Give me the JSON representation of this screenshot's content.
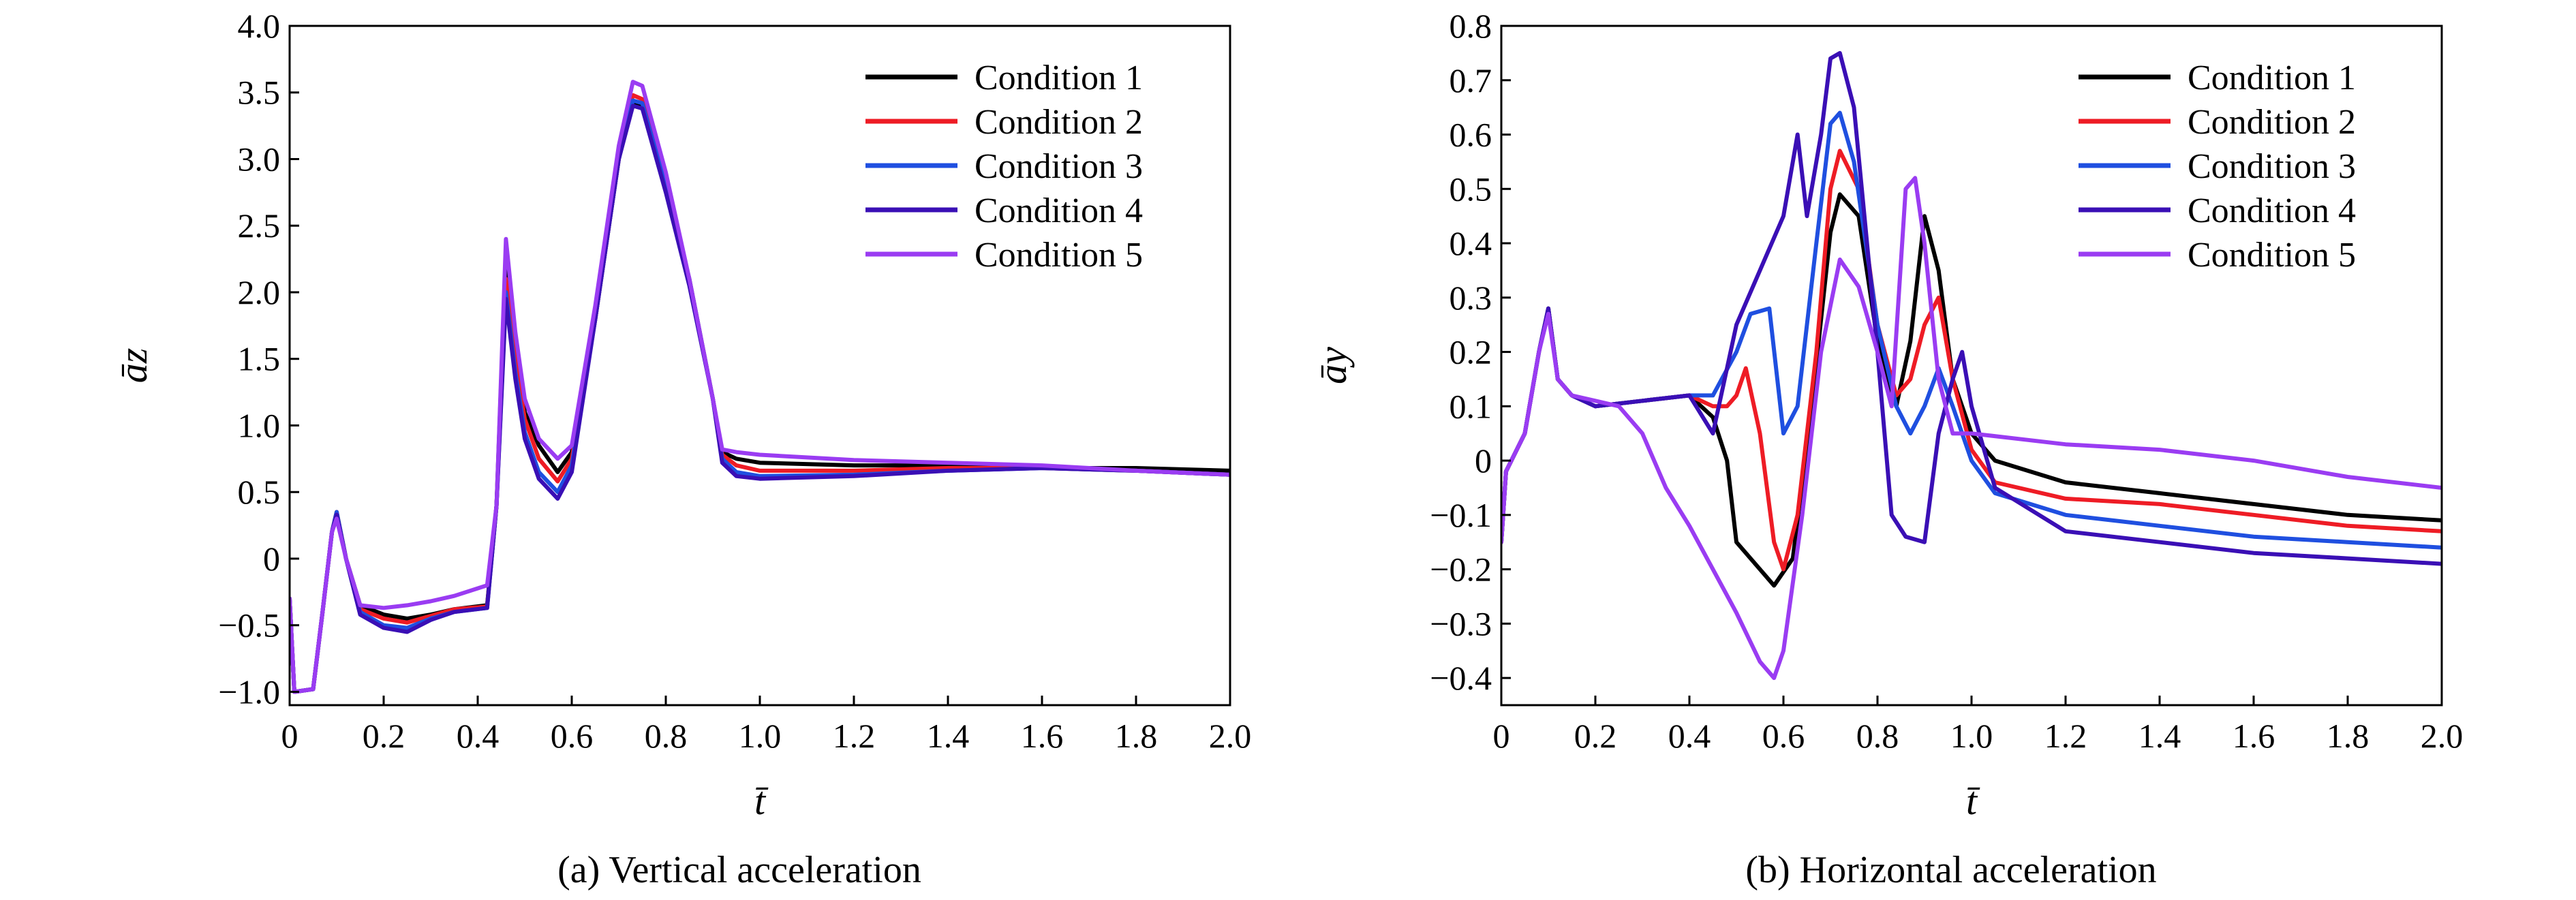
{
  "chart_data": [
    {
      "type": "line",
      "caption": "(a) Vertical acceleration",
      "xlabel": "t̄",
      "ylabel": "āz",
      "xlim": [
        0,
        2.0
      ],
      "ylim": [
        -1.1,
        4.0
      ],
      "xticks": [
        "0",
        "0.2",
        "0.4",
        "0.6",
        "0.8",
        "1.0",
        "1.2",
        "1.4",
        "1.6",
        "1.8",
        "2.0"
      ],
      "xtick_values": [
        0,
        0.2,
        0.4,
        0.6,
        0.8,
        1.0,
        1.2,
        1.4,
        1.6,
        1.8,
        2.0
      ],
      "yticks": [
        "−1.0",
        "−0.5",
        "0",
        "0.5",
        "1.0",
        "1.5",
        "2.0",
        "2.5",
        "3.0",
        "3.5",
        "4.0"
      ],
      "ytick_values": [
        -1.0,
        -0.5,
        0,
        0.5,
        1.0,
        1.5,
        2.0,
        2.5,
        3.0,
        3.5,
        4.0
      ],
      "legend_position": "top-right",
      "series": [
        {
          "name": "Condition 1",
          "color": "#000000",
          "x": [
            0,
            0.01,
            0.05,
            0.07,
            0.09,
            0.1,
            0.12,
            0.15,
            0.2,
            0.25,
            0.3,
            0.35,
            0.42,
            0.44,
            0.46,
            0.48,
            0.5,
            0.53,
            0.57,
            0.6,
            0.65,
            0.7,
            0.73,
            0.75,
            0.8,
            0.85,
            0.9,
            0.92,
            0.95,
            1.0,
            1.2,
            1.4,
            1.6,
            1.8,
            2.0
          ],
          "y": [
            -0.3,
            -1.0,
            -0.98,
            -0.4,
            0.2,
            0.35,
            0.0,
            -0.35,
            -0.42,
            -0.45,
            -0.42,
            -0.38,
            -0.35,
            0.4,
            2.3,
            1.6,
            1.1,
            0.85,
            0.65,
            0.8,
            1.8,
            3.0,
            3.42,
            3.4,
            2.8,
            2.1,
            1.2,
            0.8,
            0.75,
            0.72,
            0.7,
            0.7,
            0.68,
            0.68,
            0.66
          ]
        },
        {
          "name": "Condition 2",
          "color": "#ee1c25",
          "x": [
            0,
            0.01,
            0.05,
            0.07,
            0.09,
            0.1,
            0.12,
            0.15,
            0.2,
            0.25,
            0.3,
            0.35,
            0.42,
            0.44,
            0.46,
            0.48,
            0.5,
            0.53,
            0.57,
            0.6,
            0.65,
            0.7,
            0.73,
            0.75,
            0.8,
            0.85,
            0.9,
            0.92,
            0.95,
            1.0,
            1.2,
            1.4,
            1.6,
            1.8,
            2.0
          ],
          "y": [
            -0.3,
            -1.0,
            -0.98,
            -0.4,
            0.2,
            0.35,
            0.0,
            -0.38,
            -0.45,
            -0.48,
            -0.43,
            -0.38,
            -0.36,
            0.4,
            2.1,
            1.5,
            1.05,
            0.75,
            0.58,
            0.75,
            1.8,
            3.0,
            3.48,
            3.45,
            2.8,
            2.1,
            1.2,
            0.78,
            0.7,
            0.66,
            0.66,
            0.68,
            0.68,
            0.66,
            0.63
          ]
        },
        {
          "name": "Condition 3",
          "color": "#1f4fe0",
          "x": [
            0,
            0.01,
            0.05,
            0.07,
            0.09,
            0.1,
            0.12,
            0.15,
            0.2,
            0.25,
            0.3,
            0.35,
            0.42,
            0.44,
            0.46,
            0.48,
            0.5,
            0.53,
            0.57,
            0.6,
            0.65,
            0.7,
            0.73,
            0.75,
            0.8,
            0.85,
            0.9,
            0.92,
            0.95,
            1.0,
            1.2,
            1.4,
            1.6,
            1.8,
            2.0
          ],
          "y": [
            -0.3,
            -1.0,
            -0.98,
            -0.4,
            0.2,
            0.35,
            0.0,
            -0.4,
            -0.5,
            -0.52,
            -0.45,
            -0.4,
            -0.37,
            0.4,
            2.0,
            1.4,
            0.95,
            0.65,
            0.5,
            0.7,
            1.8,
            3.0,
            3.44,
            3.42,
            2.8,
            2.1,
            1.2,
            0.75,
            0.65,
            0.62,
            0.63,
            0.66,
            0.68,
            0.66,
            0.63
          ]
        },
        {
          "name": "Condition 4",
          "color": "#3a0fb5",
          "x": [
            0,
            0.01,
            0.05,
            0.07,
            0.09,
            0.1,
            0.12,
            0.15,
            0.2,
            0.25,
            0.3,
            0.35,
            0.42,
            0.44,
            0.46,
            0.48,
            0.5,
            0.53,
            0.57,
            0.6,
            0.65,
            0.7,
            0.73,
            0.75,
            0.8,
            0.85,
            0.9,
            0.92,
            0.95,
            1.0,
            1.2,
            1.4,
            1.6,
            1.8,
            2.0
          ],
          "y": [
            -0.3,
            -1.0,
            -0.98,
            -0.4,
            0.2,
            0.33,
            0.0,
            -0.42,
            -0.52,
            -0.55,
            -0.46,
            -0.4,
            -0.37,
            0.4,
            1.95,
            1.35,
            0.9,
            0.6,
            0.45,
            0.65,
            1.8,
            3.0,
            3.4,
            3.38,
            2.75,
            2.05,
            1.2,
            0.72,
            0.62,
            0.6,
            0.62,
            0.66,
            0.68,
            0.66,
            0.63
          ]
        },
        {
          "name": "Condition 5",
          "color": "#9a3cf2",
          "x": [
            0,
            0.01,
            0.05,
            0.07,
            0.09,
            0.1,
            0.12,
            0.15,
            0.2,
            0.25,
            0.3,
            0.35,
            0.42,
            0.44,
            0.46,
            0.48,
            0.5,
            0.53,
            0.57,
            0.6,
            0.65,
            0.7,
            0.73,
            0.75,
            0.8,
            0.85,
            0.9,
            0.92,
            0.95,
            1.0,
            1.2,
            1.4,
            1.6,
            1.8,
            2.0
          ],
          "y": [
            -0.3,
            -1.0,
            -0.98,
            -0.4,
            0.2,
            0.3,
            0.0,
            -0.35,
            -0.37,
            -0.35,
            -0.32,
            -0.28,
            -0.2,
            0.4,
            2.4,
            1.7,
            1.2,
            0.9,
            0.75,
            0.85,
            1.9,
            3.1,
            3.58,
            3.55,
            2.9,
            2.1,
            1.2,
            0.82,
            0.8,
            0.78,
            0.74,
            0.72,
            0.7,
            0.66,
            0.63
          ]
        }
      ]
    },
    {
      "type": "line",
      "caption": "(b) Horizontal acceleration",
      "xlabel": "t̄",
      "ylabel": "āy",
      "xlim": [
        0,
        2.0
      ],
      "ylim": [
        -0.45,
        0.8
      ],
      "xticks": [
        "0",
        "0.2",
        "0.4",
        "0.6",
        "0.8",
        "1.0",
        "1.2",
        "1.4",
        "1.6",
        "1.8",
        "2.0"
      ],
      "xtick_values": [
        0,
        0.2,
        0.4,
        0.6,
        0.8,
        1.0,
        1.2,
        1.4,
        1.6,
        1.8,
        2.0
      ],
      "yticks": [
        "−0.4",
        "−0.3",
        "−0.2",
        "−0.1",
        "0",
        "0.1",
        "0.2",
        "0.3",
        "0.4",
        "0.5",
        "0.6",
        "0.7",
        "0.8"
      ],
      "ytick_values": [
        -0.4,
        -0.3,
        -0.2,
        -0.1,
        0,
        0.1,
        0.2,
        0.3,
        0.4,
        0.5,
        0.6,
        0.7,
        0.8
      ],
      "legend_position": "top-right",
      "series": [
        {
          "name": "Condition 1",
          "color": "#000000",
          "x": [
            0,
            0.01,
            0.05,
            0.08,
            0.1,
            0.12,
            0.15,
            0.2,
            0.3,
            0.4,
            0.45,
            0.48,
            0.5,
            0.55,
            0.58,
            0.62,
            0.66,
            0.7,
            0.72,
            0.76,
            0.8,
            0.84,
            0.87,
            0.9,
            0.93,
            0.96,
            1.0,
            1.05,
            1.2,
            1.4,
            1.6,
            1.8,
            2.0
          ],
          "y": [
            -0.15,
            -0.02,
            0.05,
            0.2,
            0.28,
            0.15,
            0.12,
            0.1,
            0.11,
            0.12,
            0.08,
            0.0,
            -0.15,
            -0.2,
            -0.23,
            -0.18,
            0.1,
            0.42,
            0.49,
            0.45,
            0.22,
            0.1,
            0.22,
            0.45,
            0.35,
            0.15,
            0.05,
            0.0,
            -0.04,
            -0.06,
            -0.08,
            -0.1,
            -0.11
          ]
        },
        {
          "name": "Condition 2",
          "color": "#ee1c25",
          "x": [
            0,
            0.01,
            0.05,
            0.08,
            0.1,
            0.12,
            0.15,
            0.2,
            0.3,
            0.4,
            0.45,
            0.48,
            0.5,
            0.52,
            0.55,
            0.58,
            0.6,
            0.63,
            0.67,
            0.7,
            0.72,
            0.76,
            0.8,
            0.84,
            0.87,
            0.9,
            0.93,
            0.96,
            1.0,
            1.05,
            1.2,
            1.4,
            1.6,
            1.8,
            2.0
          ],
          "y": [
            -0.15,
            -0.02,
            0.05,
            0.2,
            0.28,
            0.15,
            0.12,
            0.1,
            0.11,
            0.12,
            0.1,
            0.1,
            0.12,
            0.17,
            0.05,
            -0.15,
            -0.2,
            -0.1,
            0.2,
            0.5,
            0.57,
            0.5,
            0.25,
            0.12,
            0.15,
            0.25,
            0.3,
            0.15,
            0.02,
            -0.04,
            -0.07,
            -0.08,
            -0.1,
            -0.12,
            -0.13
          ]
        },
        {
          "name": "Condition 3",
          "color": "#1f4fe0",
          "x": [
            0,
            0.01,
            0.05,
            0.08,
            0.1,
            0.12,
            0.15,
            0.2,
            0.3,
            0.4,
            0.45,
            0.5,
            0.53,
            0.57,
            0.6,
            0.63,
            0.67,
            0.7,
            0.72,
            0.75,
            0.8,
            0.84,
            0.87,
            0.9,
            0.93,
            0.96,
            1.0,
            1.05,
            1.2,
            1.4,
            1.6,
            1.8,
            2.0
          ],
          "y": [
            -0.15,
            -0.02,
            0.05,
            0.2,
            0.28,
            0.15,
            0.12,
            0.1,
            0.11,
            0.12,
            0.12,
            0.2,
            0.27,
            0.28,
            0.05,
            0.1,
            0.4,
            0.62,
            0.64,
            0.55,
            0.25,
            0.1,
            0.05,
            0.1,
            0.17,
            0.1,
            0.0,
            -0.06,
            -0.1,
            -0.12,
            -0.14,
            -0.15,
            -0.16
          ]
        },
        {
          "name": "Condition 4",
          "color": "#3a0fb5",
          "x": [
            0,
            0.01,
            0.05,
            0.08,
            0.1,
            0.12,
            0.15,
            0.2,
            0.3,
            0.4,
            0.45,
            0.5,
            0.55,
            0.6,
            0.63,
            0.65,
            0.68,
            0.7,
            0.72,
            0.75,
            0.8,
            0.83,
            0.86,
            0.9,
            0.93,
            0.96,
            0.98,
            1.0,
            1.05,
            1.2,
            1.4,
            1.6,
            1.8,
            2.0
          ],
          "y": [
            -0.15,
            -0.02,
            0.05,
            0.2,
            0.28,
            0.15,
            0.12,
            0.1,
            0.11,
            0.12,
            0.05,
            0.25,
            0.35,
            0.45,
            0.6,
            0.45,
            0.6,
            0.74,
            0.75,
            0.65,
            0.2,
            -0.1,
            -0.14,
            -0.15,
            0.05,
            0.15,
            0.2,
            0.1,
            -0.05,
            -0.13,
            -0.15,
            -0.17,
            -0.18,
            -0.19
          ]
        },
        {
          "name": "Condition 5",
          "color": "#9a3cf2",
          "x": [
            0,
            0.01,
            0.05,
            0.08,
            0.1,
            0.12,
            0.15,
            0.2,
            0.25,
            0.3,
            0.35,
            0.4,
            0.45,
            0.5,
            0.55,
            0.58,
            0.6,
            0.64,
            0.68,
            0.72,
            0.76,
            0.8,
            0.83,
            0.86,
            0.88,
            0.9,
            0.93,
            0.96,
            1.0,
            1.1,
            1.2,
            1.4,
            1.6,
            1.8,
            2.0
          ],
          "y": [
            -0.15,
            -0.02,
            0.05,
            0.2,
            0.27,
            0.15,
            0.12,
            0.11,
            0.1,
            0.05,
            -0.05,
            -0.12,
            -0.2,
            -0.28,
            -0.37,
            -0.4,
            -0.35,
            -0.1,
            0.2,
            0.37,
            0.32,
            0.2,
            0.1,
            0.5,
            0.52,
            0.4,
            0.15,
            0.05,
            0.05,
            0.04,
            0.03,
            0.02,
            0.0,
            -0.03,
            -0.05
          ]
        }
      ]
    }
  ]
}
